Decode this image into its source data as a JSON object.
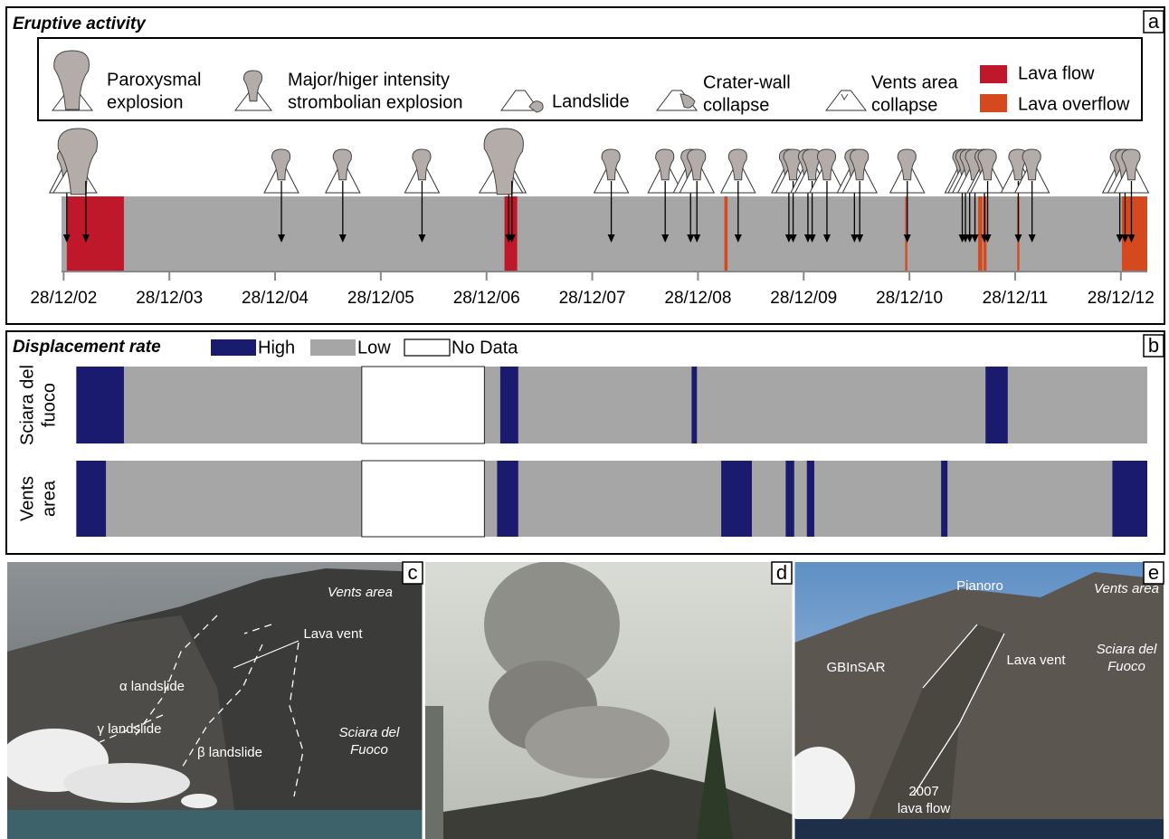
{
  "panel_a": {
    "label": "a",
    "title": "Eruptive activity",
    "legend": {
      "paroxysmal": [
        "Paroxysmal",
        "explosion"
      ],
      "major": [
        "Major/higer intensity",
        "strombolian explosion"
      ],
      "landslide": [
        "Landslide"
      ],
      "crater": [
        "Crater-wall",
        "collapse"
      ],
      "vents": [
        "Vents area",
        "collapse"
      ],
      "lava_flow": "Lava flow",
      "lava_overflow": "Lava overflow"
    },
    "lava_flow_color": "#c0182b",
    "lava_overflow_color": "#d44a1e",
    "background_color": "#a6a6a6",
    "xlim": [
      2002.97,
      2013.24
    ],
    "xticks": [
      {
        "value": 2002.99,
        "label": "28/12/02"
      },
      {
        "value": 2003.99,
        "label": "28/12/03"
      },
      {
        "value": 2004.99,
        "label": "28/12/04"
      },
      {
        "value": 2005.99,
        "label": "28/12/05"
      },
      {
        "value": 2006.99,
        "label": "28/12/06"
      },
      {
        "value": 2007.99,
        "label": "28/12/07"
      },
      {
        "value": 2008.99,
        "label": "28/12/08"
      },
      {
        "value": 2009.99,
        "label": "28/12/09"
      },
      {
        "value": 2010.99,
        "label": "28/12/10"
      },
      {
        "value": 2011.99,
        "label": "28/12/11"
      },
      {
        "value": 2012.99,
        "label": "28/12/12"
      }
    ],
    "paroxysms": [
      2003.2,
      2007.23
    ],
    "explosions": [
      2003.02,
      2005.05,
      2005.63,
      2006.38,
      2007.2,
      2008.17,
      2008.68,
      2008.92,
      2008.98,
      2009.37,
      2009.85,
      2009.89,
      2010.03,
      2010.07,
      2010.21,
      2010.47,
      2010.52,
      2010.97,
      2011.49,
      2011.52,
      2011.56,
      2011.61,
      2011.7,
      2011.73,
      2012.02,
      2012.15,
      2012.98,
      2013.03,
      2013.09
    ],
    "lava_flows": [
      [
        2003.02,
        2003.56
      ],
      [
        2007.16,
        2007.28
      ]
    ],
    "lava_overflows": [
      [
        2009.24,
        2009.27
      ],
      [
        2010.95,
        2010.97
      ],
      [
        2011.64,
        2011.68
      ],
      [
        2011.69,
        2011.72
      ],
      [
        2012.01,
        2012.03
      ],
      [
        2013.0,
        2013.24
      ]
    ]
  },
  "panel_b": {
    "label": "b",
    "title": "Displacement rate",
    "legend": {
      "high": "High",
      "low": "Low",
      "no_data": "No Data"
    },
    "high_color": "#1a1a6e",
    "low_color": "#a6a6a6",
    "start": 2003.11,
    "rows": [
      {
        "name": [
          "Sciara del",
          "fuoco"
        ],
        "high": [
          [
            2003.11,
            2003.56
          ],
          [
            2007.12,
            2007.29
          ],
          [
            2008.93,
            2008.98
          ],
          [
            2011.71,
            2011.92
          ]
        ],
        "no_data": [
          [
            2005.81,
            2006.97
          ]
        ]
      },
      {
        "name": [
          "Vents",
          "area"
        ],
        "high": [
          [
            2003.11,
            2003.39
          ],
          [
            2007.09,
            2007.29
          ],
          [
            2009.21,
            2009.5
          ],
          [
            2009.82,
            2009.9
          ],
          [
            2010.02,
            2010.09
          ],
          [
            2011.29,
            2011.35
          ],
          [
            2012.91,
            2013.24
          ]
        ],
        "no_data": [
          [
            2005.81,
            2006.97
          ]
        ]
      }
    ]
  },
  "photos": [
    {
      "label": "c",
      "annotations": [
        [
          "Vents area"
        ],
        [
          "Lava vent"
        ],
        [
          "α landslide"
        ],
        [
          "γ landslide"
        ],
        [
          "β landslide"
        ],
        [
          "Sciara del",
          "Fuoco"
        ]
      ]
    },
    {
      "label": "d",
      "annotations": []
    },
    {
      "label": "e",
      "annotations": [
        [
          "Pianoro"
        ],
        [
          "Vents area"
        ],
        [
          "GBInSAR"
        ],
        [
          "Lava vent"
        ],
        [
          "Sciara del",
          "Fuoco"
        ],
        [
          "2007",
          "lava flow"
        ]
      ]
    }
  ]
}
